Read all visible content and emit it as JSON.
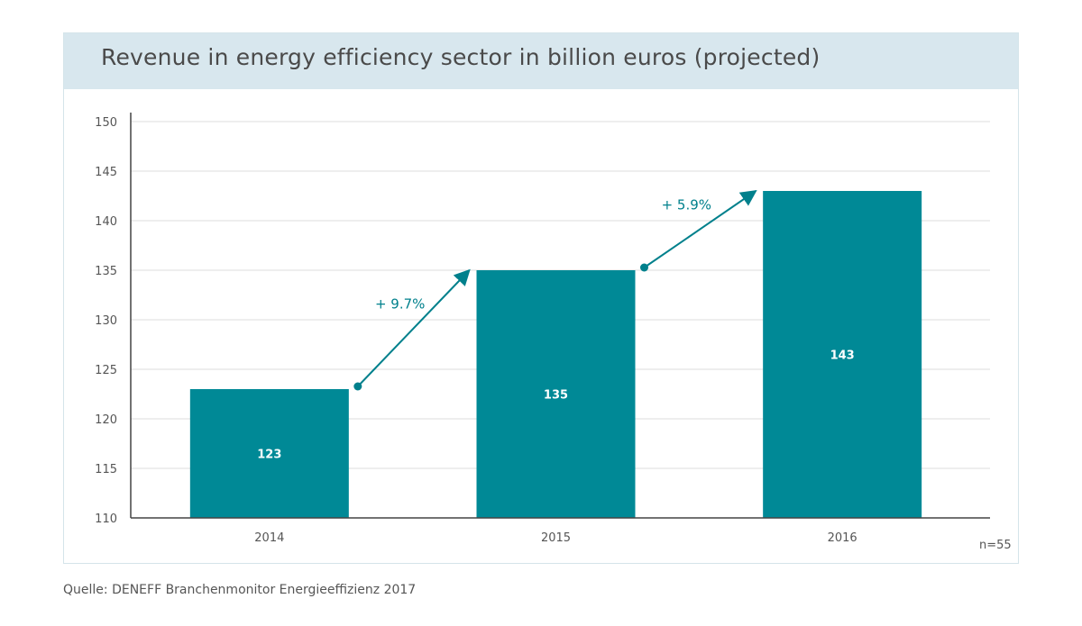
{
  "colors": {
    "bar": "#008996",
    "arrow": "#00808c",
    "grid": "#dddddd",
    "axis": "#444444",
    "title_bar": "#d8e7ee"
  },
  "chart_data": {
    "type": "bar",
    "title": "Revenue in energy efficiency sector in billion euros (projected)",
    "categories": [
      "2014",
      "2015",
      "2016"
    ],
    "values": [
      123,
      135,
      143
    ],
    "data_labels": [
      "123",
      "135",
      "143"
    ],
    "ylim": [
      110,
      150
    ],
    "yticks": [
      110,
      115,
      120,
      125,
      130,
      135,
      140,
      145,
      150
    ],
    "grid": true,
    "annotations": [
      {
        "text": "+ 9.7%",
        "from": "2014",
        "to": "2015"
      },
      {
        "text": "+ 5.9%",
        "from": "2015",
        "to": "2016"
      }
    ],
    "sample_note": "n=55"
  },
  "source": "Quelle: DENEFF Branchenmonitor Energieeffizienz 2017"
}
